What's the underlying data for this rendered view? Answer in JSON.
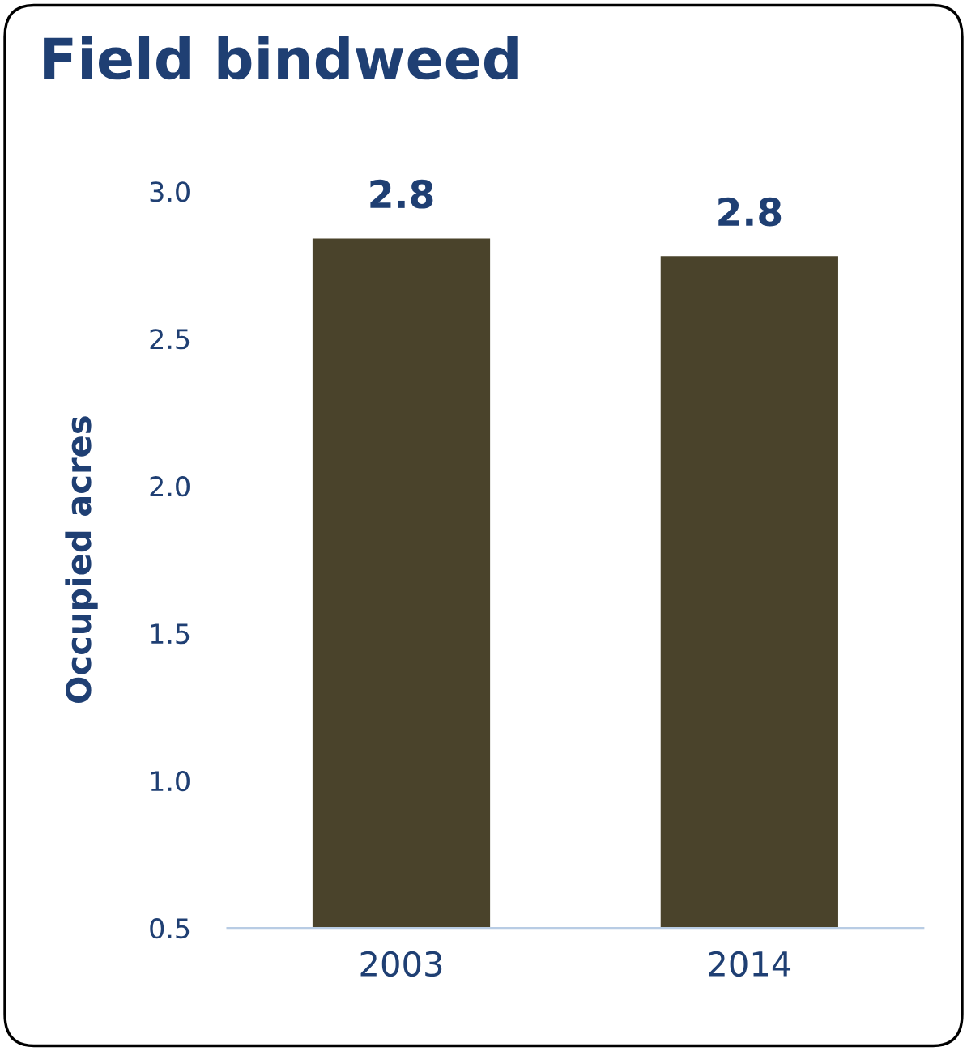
{
  "chart_data": {
    "type": "bar",
    "title": "Field bindweed",
    "ylabel": "Occupied acres",
    "categories": [
      "2003",
      "2014"
    ],
    "series": [
      {
        "color": "#4a432b",
        "values": [
          2.84,
          2.78
        ],
        "value_labels": [
          "2.8",
          "2.8"
        ]
      }
    ],
    "ylim": [
      0.5,
      3.0
    ],
    "yticks": [
      0.5,
      {
        "value": 1,
        "label": "1.0"
      },
      1.5,
      {
        "value": 2,
        "label": "2.0"
      },
      2.5,
      {
        "value": 3,
        "label": "3.0"
      }
    ],
    "grid": false,
    "legend": false
  }
}
